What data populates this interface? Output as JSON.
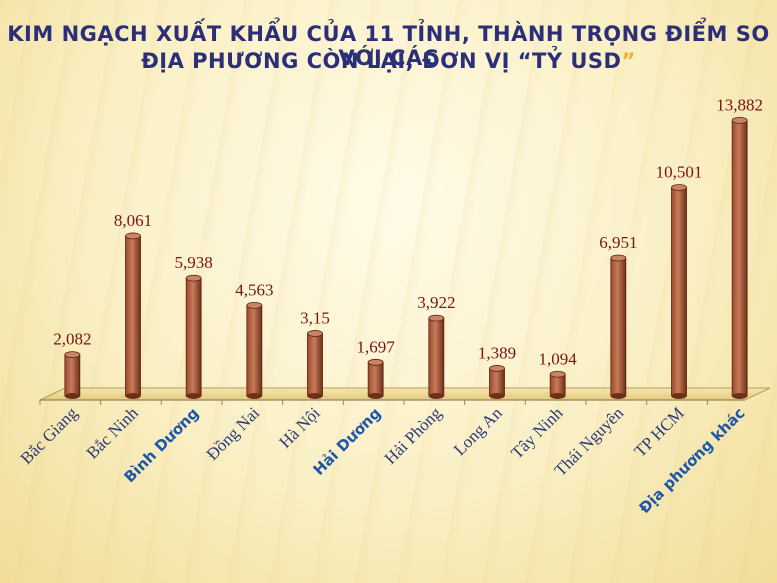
{
  "title_line1": "Kim ngạch xuất khẩu của 11 tỉnh, thành trọng điểm so với các",
  "title_line2": "địa phương còn lại, đơn vị “tỷ USD",
  "title_quote_end": "”",
  "colors": {
    "bar": "#9b4a2c",
    "bar_highlight": "#c77b5b",
    "value_label": "#7a1414",
    "category": "#2a3a7a",
    "category_highlight": "#1f57a8",
    "title": "#2b2f78",
    "title_quote": "#f0b030"
  },
  "chart_data": {
    "type": "bar",
    "categories": [
      "Bắc Giang",
      "Bắc Ninh",
      "Bình Dương",
      "Đồng Nai",
      "Hà Nội",
      "Hải Dương",
      "Hải Phòng",
      "Long An",
      "Tây Ninh",
      "Thái Nguyên",
      "TP HCM",
      "Địa phương khác"
    ],
    "values": [
      2.082,
      8.061,
      5.938,
      4.563,
      3.15,
      1.697,
      3.922,
      1.389,
      1.094,
      6.951,
      10.501,
      13.882
    ],
    "value_labels": [
      "2,082",
      "8,061",
      "5,938",
      "4,563",
      "3,15",
      "1,697",
      "3,922",
      "1,389",
      "1,094",
      "6,951",
      "10,501",
      "13,882"
    ],
    "highlighted_categories": [
      "Bình Dương",
      "Hải Dương",
      "Địa phương khác"
    ],
    "ylim": [
      0,
      14
    ],
    "grid": false,
    "legend": "none"
  }
}
